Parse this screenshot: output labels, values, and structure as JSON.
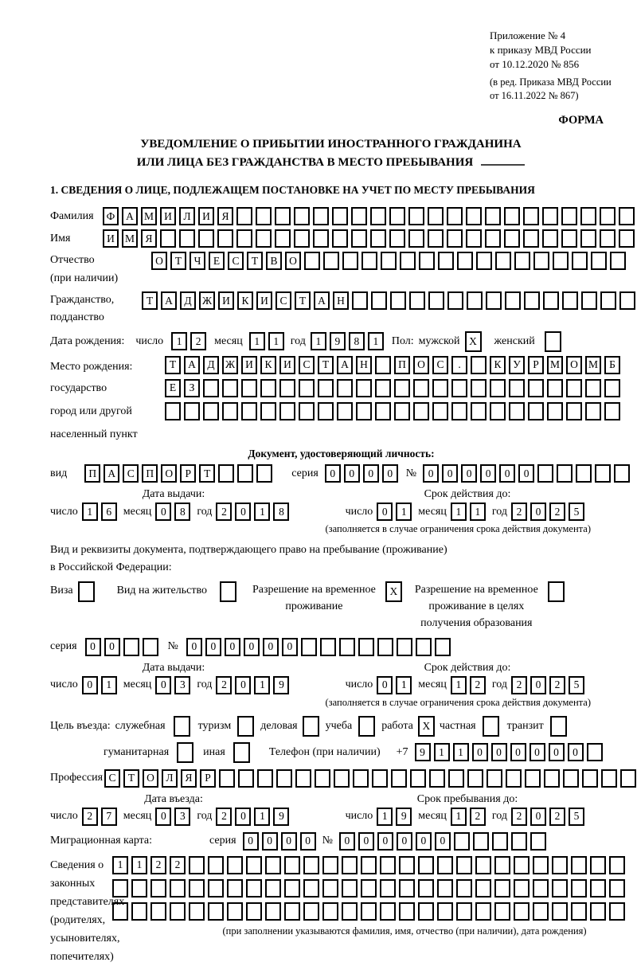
{
  "header": {
    "annex_lines": [
      "Приложение № 4",
      "к приказу МВД России",
      "от 10.12.2020 № 856"
    ],
    "edition_lines": [
      "(в ред. Приказа МВД России",
      "от 16.11.2022 № 867)"
    ],
    "forma": "ФОРМА"
  },
  "title": {
    "line1": "УВЕДОМЛЕНИЕ О ПРИБЫТИИ ИНОСТРАННОГО ГРАЖДАНИНА",
    "line2": "ИЛИ ЛИЦА БЕЗ ГРАЖДАНСТВА В МЕСТО ПРЕБЫВАНИЯ"
  },
  "section1_heading": "1. СВЕДЕНИЯ О ЛИЦЕ, ПОДЛЕЖАЩЕМ ПОСТАНОВКЕ НА УЧЕТ ПО МЕСТУ ПРЕБЫВАНИЯ",
  "labels": {
    "day": "число",
    "month": "месяц",
    "year": "год",
    "series": "серия",
    "number": "№"
  },
  "surname": {
    "label": "Фамилия",
    "boxes": {
      "value": "ФАМИЛИЯ",
      "count": 28
    }
  },
  "name": {
    "label": "Имя",
    "boxes": {
      "value": "ИМЯ",
      "count": 28
    }
  },
  "patronymic": {
    "label": "Отчество",
    "label2": "(при наличии)",
    "boxes": {
      "value": "ОТЧЕСТВО",
      "count": 25
    }
  },
  "citizenship": {
    "label": "Гражданство,",
    "label2": "подданство",
    "boxes": {
      "value": "ТАДЖИКИСТАН",
      "count": 26
    }
  },
  "birth_date": {
    "label": "Дата рождения:",
    "day": {
      "value": "12",
      "count": 2
    },
    "month": {
      "value": "11",
      "count": 2
    },
    "year": {
      "value": "1981",
      "count": 4
    },
    "sex_label": "Пол:",
    "male_label": "мужской",
    "female_label": "женский",
    "male": {
      "value": "X",
      "count": 1
    },
    "female": {
      "value": "",
      "count": 1
    }
  },
  "birth_place": {
    "label1": "Место рождения:",
    "label2": "государство",
    "label3": "город или другой",
    "label4": "населенный пункт",
    "row1": {
      "value": "ТАДЖИКИСТАН ПОС. КУРМОМБ",
      "count": 24
    },
    "row2": {
      "value": "ЕЗ",
      "count": 24
    },
    "row3": {
      "value": "",
      "count": 24
    }
  },
  "identity_doc": {
    "heading": "Документ, удостоверяющий личность:",
    "kind_label": "вид",
    "kind": {
      "value": "ПАСПОРТ",
      "count": 10
    },
    "series": {
      "value": "0000",
      "count": 4
    },
    "number": {
      "value": "000000",
      "count": 11
    },
    "issue_heading": "Дата выдачи:",
    "issue_day": {
      "value": "16",
      "count": 2
    },
    "issue_month": {
      "value": "08",
      "count": 2
    },
    "issue_year": {
      "value": "2018",
      "count": 4
    },
    "valid_heading": "Срок действия до:",
    "valid_day": {
      "value": "01",
      "count": 2
    },
    "valid_month": {
      "value": "11",
      "count": 2
    },
    "valid_year": {
      "value": "2025",
      "count": 4
    },
    "note": "(заполняется в случае ограничения срока действия документа)"
  },
  "residence_doc": {
    "intro1": "Вид и реквизиты документа, подтверждающего право на пребывание (проживание)",
    "intro2": "в Российской Федерации:",
    "visa_label": "Виза",
    "visa": {
      "value": "",
      "count": 1
    },
    "permit_label": "Вид на жительство",
    "permit": {
      "value": "",
      "count": 1
    },
    "temp_label1": "Разрешение на временное",
    "temp_label2": "проживание",
    "temp": {
      "value": "X",
      "count": 1
    },
    "edu_label1": "Разрешение на временное",
    "edu_label2": "проживание в целях",
    "edu_label3": "получения образования",
    "edu": {
      "value": "",
      "count": 1
    },
    "series": {
      "value": "00",
      "count": 4
    },
    "number": {
      "value": "000000",
      "count": 14
    },
    "issue_heading": "Дата выдачи:",
    "issue_day": {
      "value": "01",
      "count": 2
    },
    "issue_month": {
      "value": "03",
      "count": 2
    },
    "issue_year": {
      "value": "2019",
      "count": 4
    },
    "valid_heading": "Срок действия до:",
    "valid_day": {
      "value": "01",
      "count": 2
    },
    "valid_month": {
      "value": "12",
      "count": 2
    },
    "valid_year": {
      "value": "2025",
      "count": 4
    },
    "note": "(заполняется в случае ограничения срока действия документа)"
  },
  "purpose": {
    "label": "Цель въезда:",
    "opt1_label": "служебная",
    "opt1": {
      "value": "",
      "count": 1
    },
    "opt2_label": "туризм",
    "opt2": {
      "value": "",
      "count": 1
    },
    "opt3_label": "деловая",
    "opt3": {
      "value": "",
      "count": 1
    },
    "opt4_label": "учеба",
    "opt4": {
      "value": "",
      "count": 1
    },
    "opt5_label": "работа",
    "opt5": {
      "value": "X",
      "count": 1
    },
    "opt6_label": "частная",
    "opt6": {
      "value": "",
      "count": 1
    },
    "opt7_label": "транзит",
    "opt7": {
      "value": "",
      "count": 1
    },
    "opt8_label": "гуманитарная",
    "opt8": {
      "value": "",
      "count": 1
    },
    "opt9_label": "иная",
    "opt9": {
      "value": "",
      "count": 1
    },
    "phone_label": "Телефон (при наличии)",
    "phone_prefix": "+7",
    "phone": {
      "value": "911000000",
      "count": 10
    }
  },
  "profession": {
    "label": "Профессия",
    "boxes": {
      "value": "СТОЛЯР",
      "count": 28
    }
  },
  "entry": {
    "entry_heading": "Дата въезда:",
    "entry_day": {
      "value": "27",
      "count": 2
    },
    "entry_month": {
      "value": "03",
      "count": 2
    },
    "entry_year": {
      "value": "2019",
      "count": 4
    },
    "stay_heading": "Срок пребывания до:",
    "stay_day": {
      "value": "19",
      "count": 2
    },
    "stay_month": {
      "value": "12",
      "count": 2
    },
    "stay_year": {
      "value": "2025",
      "count": 4
    }
  },
  "migration_card": {
    "label": "Миграционная карта:",
    "series": {
      "value": "0000",
      "count": 4
    },
    "number": {
      "value": "000000",
      "count": 11
    }
  },
  "representatives": {
    "label_lines": [
      "Сведения о",
      "законных",
      "представителях",
      "(родителях,",
      "усыновителях,",
      "попечителях)"
    ],
    "row1": {
      "value": "1122",
      "count": 27
    },
    "row2": {
      "value": "",
      "count": 27
    },
    "row3": {
      "value": "",
      "count": 27
    },
    "note": "(при заполнении указываются фамилия, имя, отчество (при наличии), дата рождения)"
  }
}
